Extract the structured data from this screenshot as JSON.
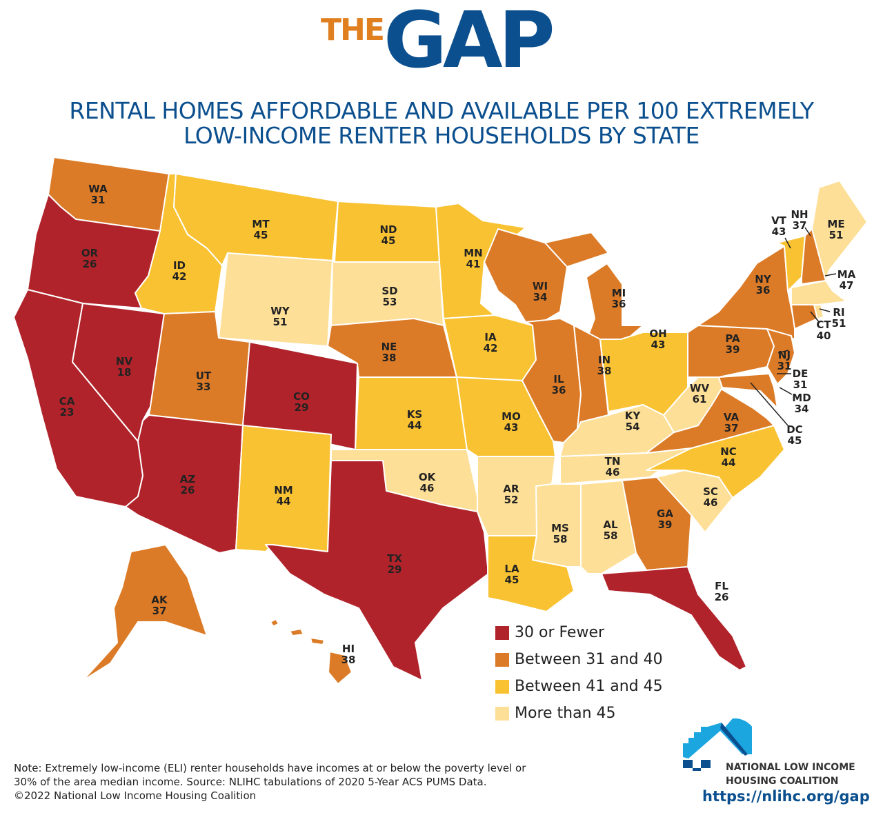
{
  "header": {
    "logo_the": "THE",
    "logo_gap": "GAP",
    "subtitle_line1": "RENTAL HOMES AFFORDABLE AND AVAILABLE PER 100 EXTREMELY",
    "subtitle_line2": "LOW-INCOME RENTER HOUSEHOLDS BY STATE"
  },
  "legend": [
    {
      "label": "30 or Fewer",
      "color": "#B0232A"
    },
    {
      "label": "Between 31 and 40",
      "color": "#DC7B27"
    },
    {
      "label": "Between 41 and 45",
      "color": "#F9C232"
    },
    {
      "label": "More than 45",
      "color": "#FDDF97"
    }
  ],
  "states": [
    {
      "abbr": "WA",
      "value": "31"
    },
    {
      "abbr": "OR",
      "value": "26"
    },
    {
      "abbr": "CA",
      "value": "23"
    },
    {
      "abbr": "NV",
      "value": "18"
    },
    {
      "abbr": "ID",
      "value": "42"
    },
    {
      "abbr": "MT",
      "value": "45"
    },
    {
      "abbr": "WY",
      "value": "51"
    },
    {
      "abbr": "UT",
      "value": "33"
    },
    {
      "abbr": "CO",
      "value": "29"
    },
    {
      "abbr": "AZ",
      "value": "26"
    },
    {
      "abbr": "NM",
      "value": "44"
    },
    {
      "abbr": "ND",
      "value": "45"
    },
    {
      "abbr": "SD",
      "value": "53"
    },
    {
      "abbr": "NE",
      "value": "38"
    },
    {
      "abbr": "KS",
      "value": "44"
    },
    {
      "abbr": "OK",
      "value": "46"
    },
    {
      "abbr": "TX",
      "value": "29"
    },
    {
      "abbr": "MN",
      "value": "41"
    },
    {
      "abbr": "IA",
      "value": "42"
    },
    {
      "abbr": "MO",
      "value": "43"
    },
    {
      "abbr": "AR",
      "value": "52"
    },
    {
      "abbr": "LA",
      "value": "45"
    },
    {
      "abbr": "WI",
      "value": "34"
    },
    {
      "abbr": "IL",
      "value": "36"
    },
    {
      "abbr": "MI",
      "value": "36"
    },
    {
      "abbr": "IN",
      "value": "38"
    },
    {
      "abbr": "OH",
      "value": "43"
    },
    {
      "abbr": "KY",
      "value": "54"
    },
    {
      "abbr": "TN",
      "value": "46"
    },
    {
      "abbr": "MS",
      "value": "58"
    },
    {
      "abbr": "AL",
      "value": "58"
    },
    {
      "abbr": "GA",
      "value": "39"
    },
    {
      "abbr": "FL",
      "value": "26"
    },
    {
      "abbr": "SC",
      "value": "46"
    },
    {
      "abbr": "NC",
      "value": "44"
    },
    {
      "abbr": "VA",
      "value": "37"
    },
    {
      "abbr": "WV",
      "value": "61"
    },
    {
      "abbr": "MD",
      "value": "34"
    },
    {
      "abbr": "DE",
      "value": "31"
    },
    {
      "abbr": "DC",
      "value": "45"
    },
    {
      "abbr": "PA",
      "value": "39"
    },
    {
      "abbr": "NJ",
      "value": "31"
    },
    {
      "abbr": "NY",
      "value": "36"
    },
    {
      "abbr": "VT",
      "value": "43"
    },
    {
      "abbr": "NH",
      "value": "37"
    },
    {
      "abbr": "ME",
      "value": "51"
    },
    {
      "abbr": "MA",
      "value": "47"
    },
    {
      "abbr": "CT",
      "value": "40"
    },
    {
      "abbr": "RI",
      "value": "51"
    },
    {
      "abbr": "AK",
      "value": "37"
    },
    {
      "abbr": "HI",
      "value": "38"
    }
  ],
  "note": {
    "line1": "Note: Extremely low-income (ELI) renter households have incomes at or below the poverty level or",
    "line2": "30% of the area median income. Source: NLIHC tabulations of 2020 5-Year ACS PUMS Data.",
    "line3": "©2022 National Low Income Housing Coalition"
  },
  "organization": {
    "line1": "NATIONAL LOW INCOME",
    "line2": "HOUSING COALITION",
    "url": "https://nlihc.org/gap"
  }
}
